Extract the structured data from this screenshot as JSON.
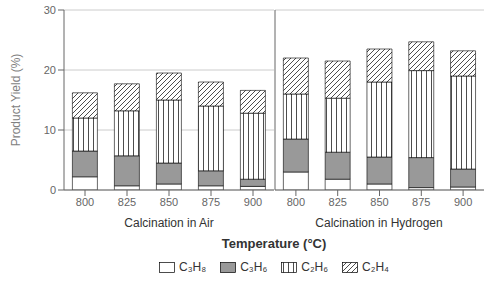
{
  "chart_data": [
    {
      "type": "bar",
      "stacked": true,
      "title": "Calcination in Air",
      "xlabel": "Temperature (°C)",
      "ylabel": "Product Yield (%)",
      "categories": [
        "800",
        "825",
        "850",
        "875",
        "900"
      ],
      "series": [
        {
          "name": "C₃H₈",
          "color": "#ffffff",
          "values": [
            2.2,
            0.7,
            1.0,
            0.7,
            0.6
          ]
        },
        {
          "name": "C₃H₆",
          "color": "#999999",
          "values": [
            4.3,
            5.0,
            3.5,
            2.5,
            1.2
          ]
        },
        {
          "name": "C₂H₆",
          "color": "#ffffff",
          "values": [
            5.5,
            7.5,
            10.5,
            10.8,
            11.0
          ]
        },
        {
          "name": "C₂H₄",
          "color": "#ffffff",
          "values": [
            4.2,
            4.5,
            4.5,
            4.0,
            3.8
          ]
        }
      ],
      "ylim": [
        0,
        30
      ],
      "yticks": [
        0,
        10,
        20,
        30
      ],
      "grid": true,
      "legend": "bottom"
    },
    {
      "type": "bar",
      "stacked": true,
      "title": "Calcination in Hydrogen",
      "categories": [
        "800",
        "825",
        "850",
        "875",
        "900"
      ],
      "series": [
        {
          "name": "C₃H₈",
          "color": "#ffffff",
          "values": [
            3.0,
            1.8,
            1.0,
            0.4,
            0.5
          ]
        },
        {
          "name": "C₃H₆",
          "color": "#999999",
          "values": [
            5.5,
            4.5,
            4.5,
            5.0,
            3.0
          ]
        },
        {
          "name": "C₂H₆",
          "color": "#ffffff",
          "values": [
            7.5,
            9.0,
            12.5,
            14.5,
            15.5
          ]
        },
        {
          "name": "C₂H₄",
          "color": "#ffffff",
          "values": [
            6.0,
            6.2,
            5.5,
            4.8,
            4.2
          ]
        }
      ],
      "ylim": [
        0,
        30
      ],
      "yticks": [
        0,
        10,
        20,
        30
      ],
      "grid": true,
      "tick_labels": "x"
    }
  ]
}
